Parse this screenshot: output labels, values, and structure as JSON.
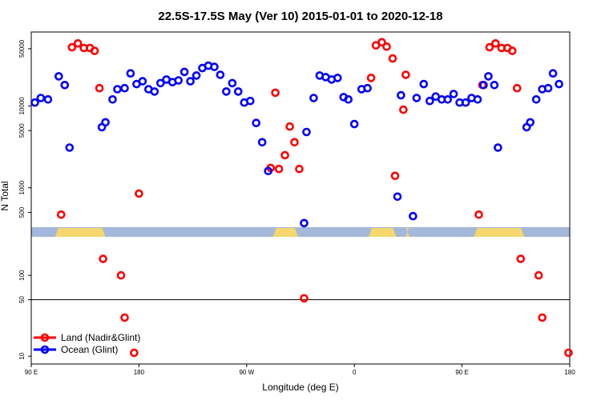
{
  "chart_data": {
    "type": "scatter",
    "title": "22.5S-17.5S May (Ver 10)   2015-01-01 to 2020-12-18",
    "xlabel": "Longitude (deg E)",
    "ylabel": "N Total",
    "x_ticks": [
      {
        "value": 90,
        "label": "90 E"
      },
      {
        "value": 180,
        "label": "180"
      },
      {
        "value": 270,
        "label": "90 W"
      },
      {
        "value": 360,
        "label": "0"
      },
      {
        "value": 450,
        "label": "90 E"
      },
      {
        "value": 540,
        "label": "180"
      }
    ],
    "xlim": [
      90,
      540
    ],
    "upper_axis": {
      "scale": "log",
      "ylim": [
        330,
        80000
      ],
      "ticks": [
        500,
        1000,
        5000,
        10000,
        50000
      ]
    },
    "lower_axis": {
      "scale": "log",
      "ylim": [
        8,
        300
      ],
      "ticks": [
        10,
        50,
        100
      ],
      "reference_line": 50
    },
    "series": [
      {
        "name": "Land (Nadir&Glint)",
        "color": "#ff0000",
        "points": [
          {
            "x": 115,
            "y": 470
          },
          {
            "x": 118,
            "y": 18000
          },
          {
            "x": 124,
            "y": 52000
          },
          {
            "x": 129,
            "y": 58000
          },
          {
            "x": 134,
            "y": 51000
          },
          {
            "x": 139,
            "y": 51000
          },
          {
            "x": 143,
            "y": 47000
          },
          {
            "x": 147,
            "y": 16500
          },
          {
            "x": 150,
            "y": 160
          },
          {
            "x": 165,
            "y": 100
          },
          {
            "x": 168,
            "y": 30
          },
          {
            "x": 176,
            "y": 11
          },
          {
            "x": 180,
            "y": 850
          },
          {
            "x": 290,
            "y": 1750
          },
          {
            "x": 294,
            "y": 14500
          },
          {
            "x": 297,
            "y": 1700
          },
          {
            "x": 302,
            "y": 2500
          },
          {
            "x": 306,
            "y": 5600
          },
          {
            "x": 310,
            "y": 3600
          },
          {
            "x": 314,
            "y": 1700
          },
          {
            "x": 318,
            "y": 52
          },
          {
            "x": 374,
            "y": 22000
          },
          {
            "x": 378,
            "y": 55000
          },
          {
            "x": 383,
            "y": 60000
          },
          {
            "x": 387,
            "y": 53000
          },
          {
            "x": 392,
            "y": 38000
          },
          {
            "x": 394,
            "y": 1400
          },
          {
            "x": 401,
            "y": 9000
          },
          {
            "x": 403,
            "y": 24000
          },
          {
            "x": 464,
            "y": 470
          },
          {
            "x": 467,
            "y": 18000
          },
          {
            "x": 473,
            "y": 52000
          },
          {
            "x": 478,
            "y": 58000
          },
          {
            "x": 483,
            "y": 51000
          },
          {
            "x": 488,
            "y": 51000
          },
          {
            "x": 492,
            "y": 47000
          },
          {
            "x": 496,
            "y": 16500
          },
          {
            "x": 499,
            "y": 160
          },
          {
            "x": 514,
            "y": 100
          },
          {
            "x": 517,
            "y": 30
          },
          {
            "x": 539,
            "y": 11
          }
        ]
      },
      {
        "name": "Ocean (Glint)",
        "color": "#0000ff",
        "points": [
          {
            "x": 93,
            "y": 11000
          },
          {
            "x": 98,
            "y": 12500
          },
          {
            "x": 104,
            "y": 12000
          },
          {
            "x": 113,
            "y": 23000
          },
          {
            "x": 118,
            "y": 18000
          },
          {
            "x": 122,
            "y": 3100
          },
          {
            "x": 149,
            "y": 5500
          },
          {
            "x": 152,
            "y": 6300
          },
          {
            "x": 158,
            "y": 12000
          },
          {
            "x": 162,
            "y": 16000
          },
          {
            "x": 168,
            "y": 16500
          },
          {
            "x": 173,
            "y": 25000
          },
          {
            "x": 178,
            "y": 18500
          },
          {
            "x": 183,
            "y": 20000
          },
          {
            "x": 188,
            "y": 16000
          },
          {
            "x": 193,
            "y": 15000
          },
          {
            "x": 198,
            "y": 19000
          },
          {
            "x": 203,
            "y": 21000
          },
          {
            "x": 208,
            "y": 19500
          },
          {
            "x": 213,
            "y": 20500
          },
          {
            "x": 218,
            "y": 26000
          },
          {
            "x": 223,
            "y": 20000
          },
          {
            "x": 228,
            "y": 23500
          },
          {
            "x": 233,
            "y": 29000
          },
          {
            "x": 238,
            "y": 31000
          },
          {
            "x": 243,
            "y": 30000
          },
          {
            "x": 248,
            "y": 24000
          },
          {
            "x": 253,
            "y": 15000
          },
          {
            "x": 258,
            "y": 19000
          },
          {
            "x": 263,
            "y": 15000
          },
          {
            "x": 268,
            "y": 11000
          },
          {
            "x": 273,
            "y": 11500
          },
          {
            "x": 278,
            "y": 6200
          },
          {
            "x": 283,
            "y": 3600
          },
          {
            "x": 288,
            "y": 1600
          },
          {
            "x": 318,
            "y": 370
          },
          {
            "x": 320,
            "y": 4800
          },
          {
            "x": 326,
            "y": 12500
          },
          {
            "x": 331,
            "y": 23500
          },
          {
            "x": 336,
            "y": 22500
          },
          {
            "x": 341,
            "y": 21000
          },
          {
            "x": 346,
            "y": 22000
          },
          {
            "x": 351,
            "y": 12800
          },
          {
            "x": 355,
            "y": 12000
          },
          {
            "x": 360,
            "y": 6000
          },
          {
            "x": 366,
            "y": 16000
          },
          {
            "x": 371,
            "y": 16500
          },
          {
            "x": 396,
            "y": 780
          },
          {
            "x": 399,
            "y": 13500
          },
          {
            "x": 409,
            "y": 450
          },
          {
            "x": 412,
            "y": 12500
          },
          {
            "x": 418,
            "y": 18500
          },
          {
            "x": 423,
            "y": 11500
          },
          {
            "x": 428,
            "y": 13000
          },
          {
            "x": 433,
            "y": 12000
          },
          {
            "x": 438,
            "y": 12000
          },
          {
            "x": 443,
            "y": 14000
          },
          {
            "x": 448,
            "y": 11000
          },
          {
            "x": 453,
            "y": 11000
          },
          {
            "x": 458,
            "y": 12500
          },
          {
            "x": 463,
            "y": 12000
          },
          {
            "x": 468,
            "y": 18000
          },
          {
            "x": 472,
            "y": 23000
          },
          {
            "x": 477,
            "y": 18000
          },
          {
            "x": 480,
            "y": 3100
          },
          {
            "x": 504,
            "y": 5500
          },
          {
            "x": 507,
            "y": 6300
          },
          {
            "x": 512,
            "y": 12000
          },
          {
            "x": 517,
            "y": 16000
          },
          {
            "x": 522,
            "y": 16500
          },
          {
            "x": 526,
            "y": 25000
          },
          {
            "x": 531,
            "y": 18500
          }
        ]
      }
    ],
    "legend": {
      "position": "bottom-left"
    },
    "map_strip_colors": {
      "ocean": "#a3b8da",
      "land": "#f5d76e"
    }
  }
}
